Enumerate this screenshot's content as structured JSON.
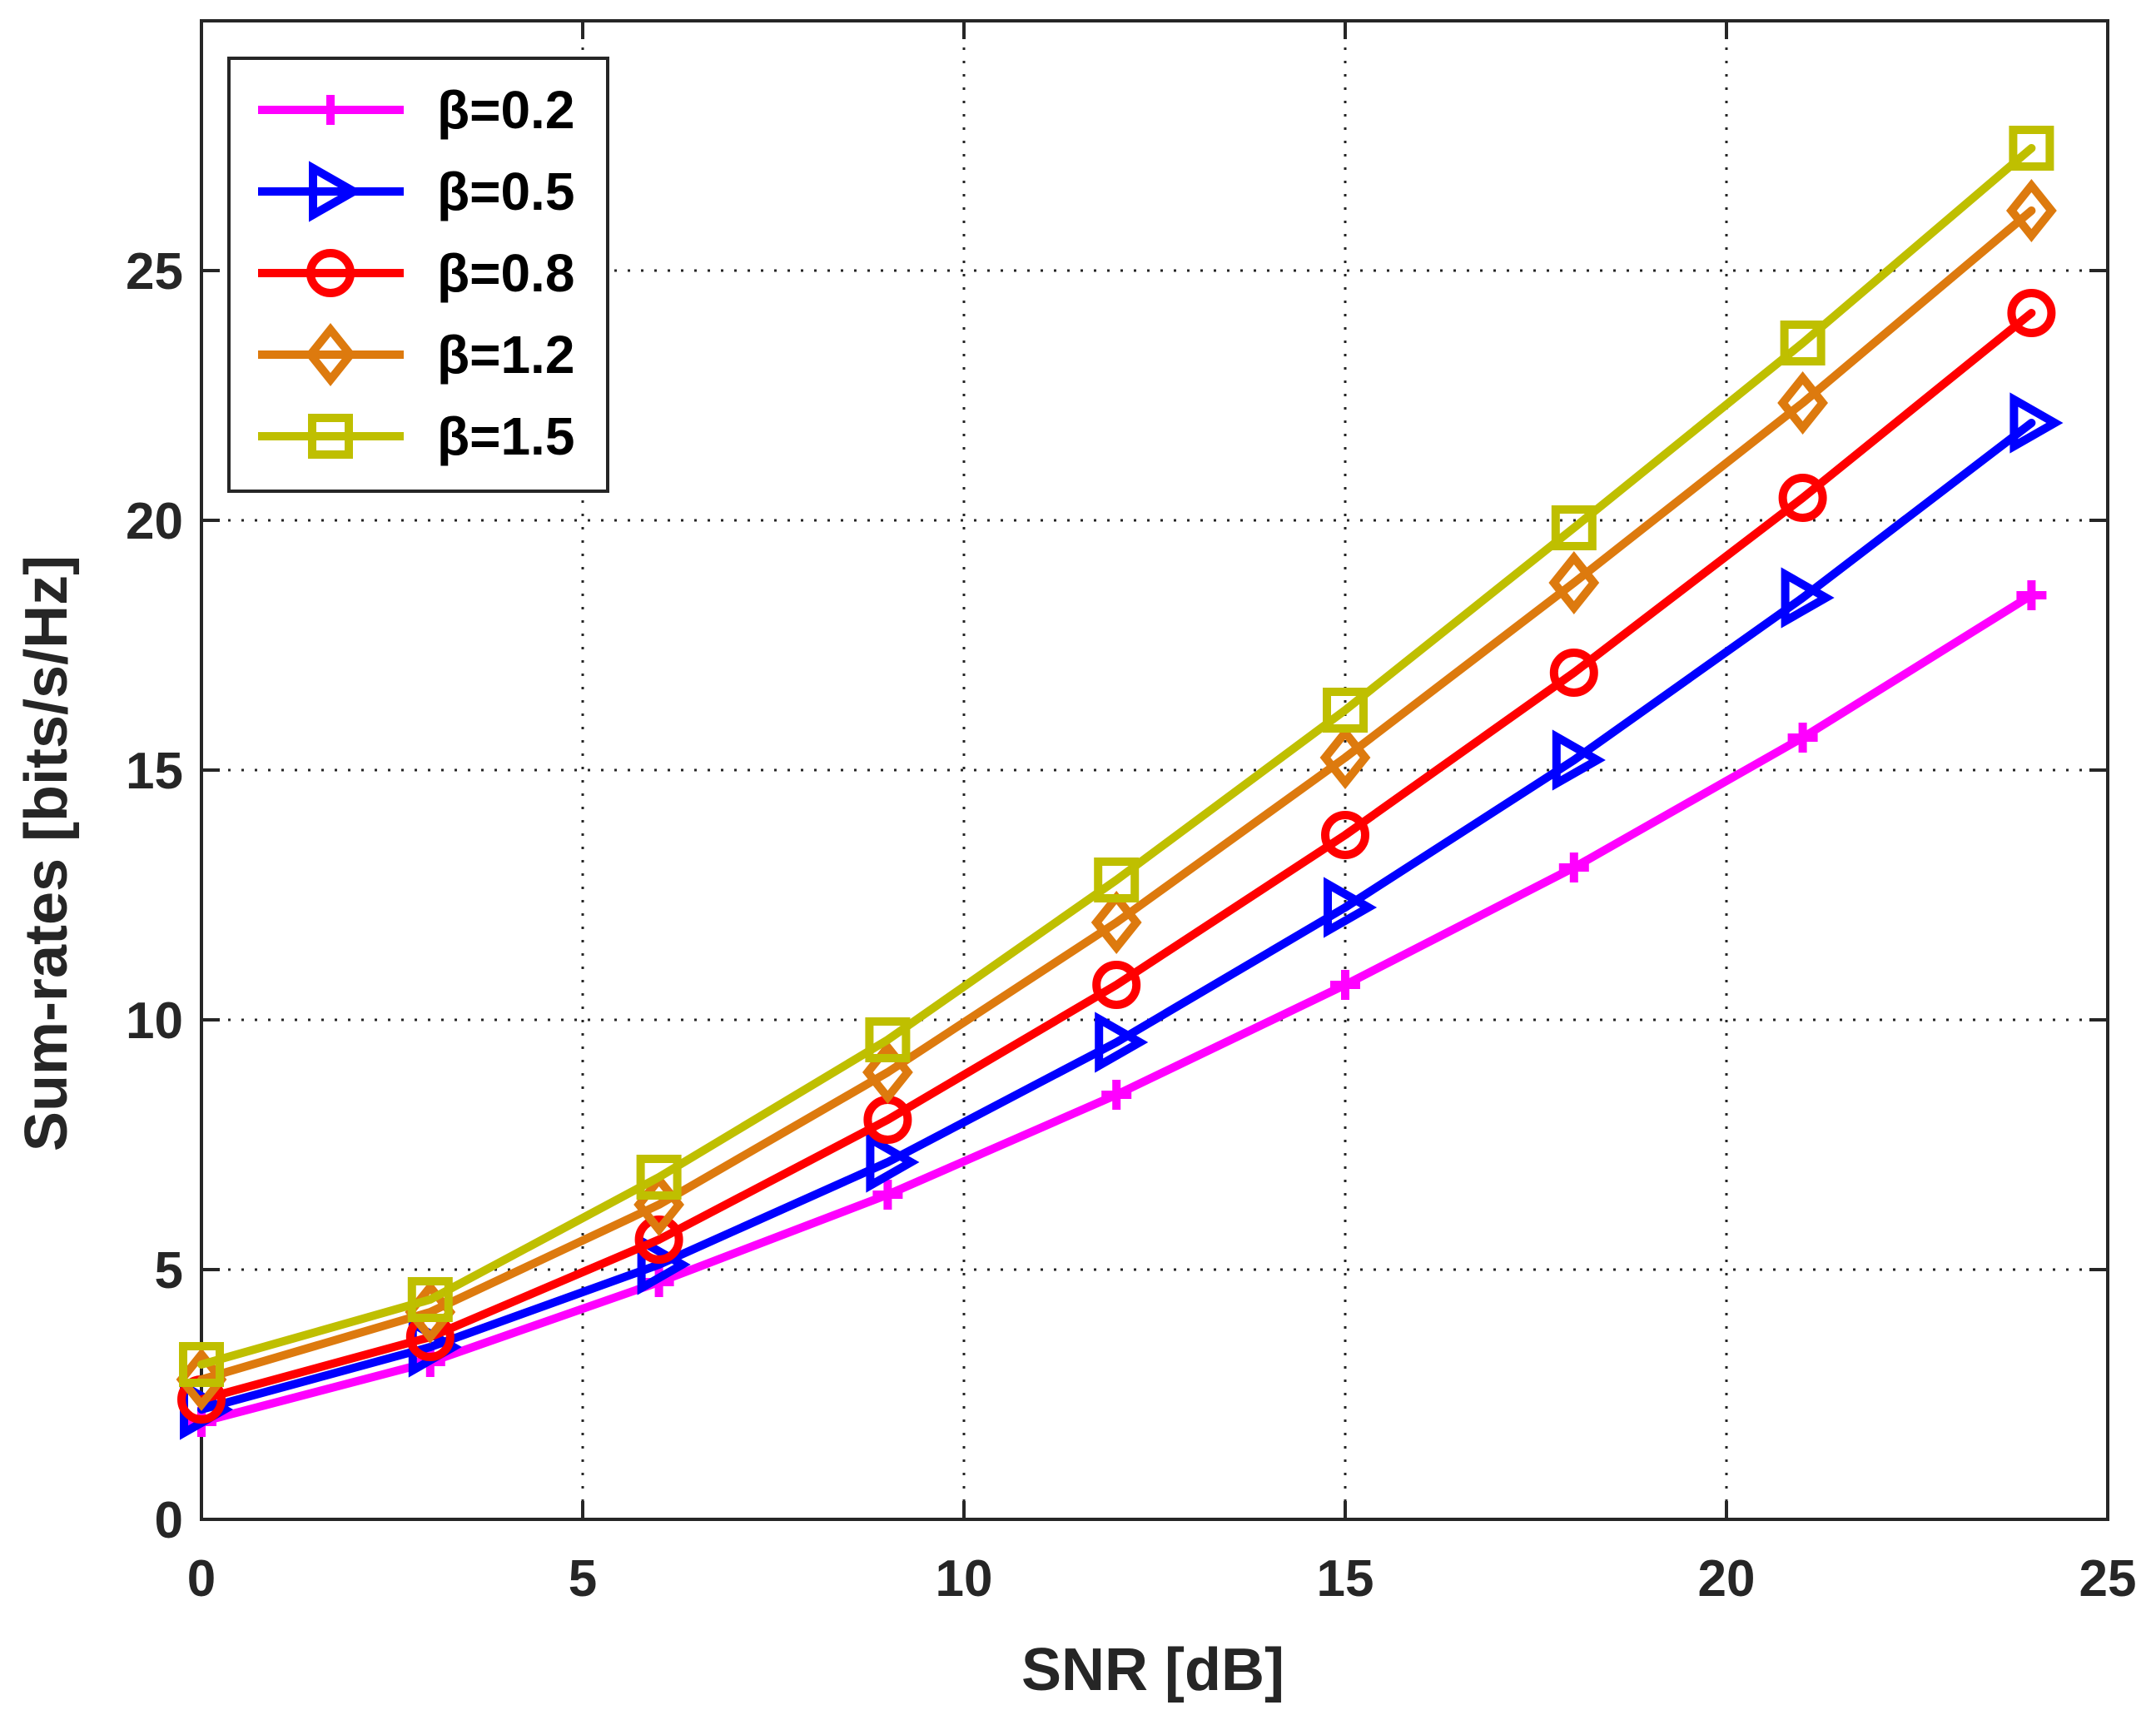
{
  "chart_data": {
    "type": "line",
    "title": "",
    "xlabel": "SNR [dB]",
    "ylabel": "Sum-rates [bits/s/Hz]",
    "xlim": [
      0,
      25
    ],
    "ylim": [
      0,
      30
    ],
    "xticks": [
      0,
      5,
      10,
      15,
      20,
      25
    ],
    "yticks": [
      0,
      5,
      10,
      15,
      20,
      25
    ],
    "xtick_labels": [
      "0",
      "5",
      "10",
      "15",
      "20",
      "25"
    ],
    "ytick_labels": [
      "0",
      "5",
      "10",
      "15",
      "20",
      "25"
    ],
    "grid": true,
    "legend_position": "top-left",
    "x": [
      0,
      3,
      6,
      9,
      12,
      15,
      18,
      21,
      24
    ],
    "series": [
      {
        "name": "β=0.2",
        "color": "#ff00ff",
        "marker": "plus",
        "values": [
          1.95,
          3.15,
          4.75,
          6.5,
          8.5,
          10.7,
          13.05,
          15.65,
          18.5
        ]
      },
      {
        "name": "β=0.5",
        "color": "#0000ff",
        "marker": "triangle-right",
        "values": [
          2.2,
          3.45,
          5.1,
          7.15,
          9.55,
          12.25,
          15.2,
          18.45,
          21.95
        ]
      },
      {
        "name": "β=0.8",
        "color": "#ff0000",
        "marker": "circle",
        "values": [
          2.4,
          3.65,
          5.6,
          8.0,
          10.7,
          13.7,
          16.95,
          20.45,
          24.15
        ]
      },
      {
        "name": "β=1.2",
        "color": "#dd7a0e",
        "marker": "diamond",
        "values": [
          2.8,
          4.15,
          6.3,
          8.95,
          11.95,
          15.25,
          18.75,
          22.35,
          26.2
        ]
      },
      {
        "name": "β=1.5",
        "color": "#bfbf00",
        "marker": "square",
        "values": [
          3.1,
          4.4,
          6.85,
          9.6,
          12.8,
          16.2,
          19.85,
          23.55,
          27.45
        ]
      }
    ]
  }
}
